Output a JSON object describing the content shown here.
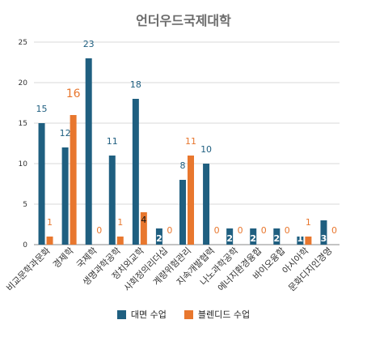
{
  "chart_data": {
    "type": "bar",
    "title": "언더우드국제대학",
    "categories": [
      "비교문학과문화",
      "경제학",
      "국제학",
      "생명과학공학",
      "정치외교학",
      "사회정의리더십",
      "계량위험관리",
      "지속개발협력",
      "나노과학공학",
      "에너지환경융합",
      "바이오융합",
      "아시아학",
      "문화디지인경영"
    ],
    "series": [
      {
        "name": "대면 수업",
        "color": "#1f5f80",
        "values": [
          15,
          12,
          23,
          11,
          18,
          2,
          8,
          10,
          2,
          2,
          2,
          1,
          3
        ]
      },
      {
        "name": "블렌디드 수업",
        "color": "#e8772e",
        "values": [
          1,
          16,
          0,
          1,
          4,
          0,
          11,
          0,
          0,
          0,
          0,
          1,
          0
        ]
      }
    ],
    "ylim": [
      0,
      25
    ],
    "yticks": [
      0,
      5,
      10,
      15,
      20,
      25
    ],
    "grid": true,
    "legend_position": "bottom"
  }
}
